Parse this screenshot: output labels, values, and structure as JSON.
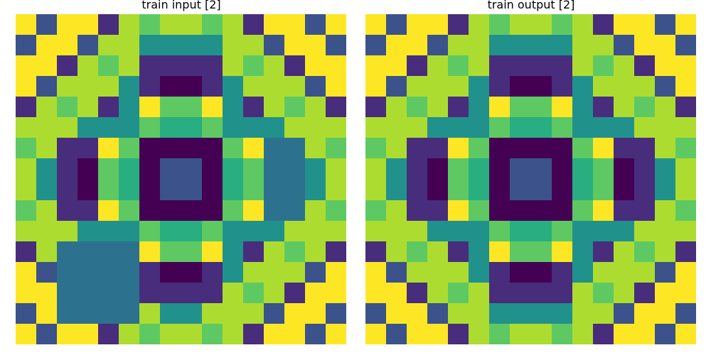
{
  "panels": [
    {
      "title": "train input [2]",
      "grid": [
        [
          9,
          2,
          9,
          9,
          1,
          8,
          7,
          8,
          8,
          7,
          8,
          1,
          9,
          9,
          2,
          9
        ],
        [
          2,
          9,
          9,
          2,
          8,
          8,
          4,
          4,
          4,
          4,
          8,
          8,
          2,
          9,
          9,
          2
        ],
        [
          9,
          9,
          1,
          8,
          7,
          8,
          1,
          1,
          1,
          1,
          8,
          7,
          8,
          1,
          9,
          9
        ],
        [
          9,
          2,
          8,
          8,
          8,
          4,
          1,
          0,
          0,
          1,
          4,
          8,
          8,
          8,
          2,
          9
        ],
        [
          1,
          8,
          7,
          8,
          1,
          4,
          9,
          7,
          7,
          9,
          4,
          1,
          8,
          7,
          8,
          1
        ],
        [
          8,
          8,
          8,
          4,
          4,
          4,
          7,
          5,
          5,
          7,
          4,
          4,
          4,
          8,
          8,
          8
        ],
        [
          7,
          8,
          1,
          1,
          9,
          7,
          0,
          0,
          0,
          0,
          7,
          9,
          3,
          3,
          8,
          7
        ],
        [
          8,
          4,
          1,
          0,
          7,
          5,
          0,
          2,
          2,
          0,
          5,
          7,
          3,
          3,
          4,
          8
        ],
        [
          8,
          4,
          1,
          0,
          7,
          5,
          0,
          2,
          2,
          0,
          5,
          7,
          3,
          3,
          4,
          8
        ],
        [
          7,
          8,
          1,
          1,
          9,
          7,
          0,
          0,
          0,
          0,
          7,
          9,
          3,
          3,
          8,
          7
        ],
        [
          8,
          8,
          8,
          4,
          4,
          4,
          7,
          5,
          5,
          7,
          4,
          4,
          4,
          8,
          8,
          8
        ],
        [
          1,
          8,
          3,
          3,
          3,
          3,
          9,
          7,
          7,
          9,
          4,
          1,
          8,
          7,
          8,
          1
        ],
        [
          9,
          2,
          3,
          3,
          3,
          3,
          1,
          0,
          0,
          1,
          4,
          8,
          8,
          8,
          2,
          9
        ],
        [
          9,
          9,
          3,
          3,
          3,
          3,
          1,
          1,
          1,
          1,
          8,
          7,
          8,
          1,
          9,
          9
        ],
        [
          2,
          9,
          3,
          3,
          3,
          3,
          8,
          4,
          4,
          8,
          8,
          8,
          2,
          9,
          9,
          2
        ],
        [
          9,
          2,
          9,
          9,
          1,
          8,
          7,
          8,
          8,
          7,
          8,
          1,
          9,
          9,
          2,
          9
        ]
      ]
    },
    {
      "title": "train output [2]",
      "grid": [
        [
          9,
          2,
          9,
          9,
          1,
          8,
          7,
          8,
          8,
          7,
          8,
          1,
          9,
          9,
          2,
          9
        ],
        [
          2,
          9,
          9,
          2,
          8,
          8,
          4,
          4,
          4,
          4,
          8,
          8,
          2,
          9,
          9,
          2
        ],
        [
          9,
          9,
          1,
          8,
          7,
          8,
          1,
          1,
          1,
          1,
          8,
          7,
          8,
          1,
          9,
          9
        ],
        [
          9,
          2,
          8,
          8,
          8,
          4,
          1,
          0,
          0,
          1,
          4,
          8,
          8,
          8,
          2,
          9
        ],
        [
          1,
          8,
          7,
          8,
          1,
          4,
          9,
          7,
          7,
          9,
          4,
          1,
          8,
          7,
          8,
          1
        ],
        [
          8,
          8,
          8,
          4,
          4,
          4,
          7,
          5,
          5,
          7,
          4,
          4,
          4,
          8,
          8,
          8
        ],
        [
          7,
          8,
          1,
          1,
          9,
          7,
          0,
          0,
          0,
          0,
          7,
          9,
          1,
          1,
          8,
          7
        ],
        [
          8,
          4,
          1,
          0,
          7,
          5,
          0,
          2,
          2,
          0,
          5,
          7,
          0,
          1,
          4,
          8
        ],
        [
          8,
          4,
          1,
          0,
          7,
          5,
          0,
          2,
          2,
          0,
          5,
          7,
          0,
          1,
          4,
          8
        ],
        [
          7,
          8,
          1,
          1,
          9,
          7,
          0,
          0,
          0,
          0,
          7,
          9,
          1,
          1,
          8,
          7
        ],
        [
          8,
          8,
          8,
          4,
          4,
          4,
          7,
          5,
          5,
          7,
          4,
          4,
          4,
          8,
          8,
          8
        ],
        [
          1,
          8,
          7,
          8,
          1,
          4,
          9,
          7,
          7,
          9,
          4,
          1,
          8,
          7,
          8,
          1
        ],
        [
          9,
          2,
          8,
          8,
          8,
          4,
          1,
          0,
          0,
          1,
          4,
          8,
          8,
          8,
          2,
          9
        ],
        [
          9,
          9,
          1,
          8,
          7,
          8,
          1,
          1,
          1,
          1,
          8,
          7,
          8,
          1,
          9,
          9
        ],
        [
          2,
          9,
          9,
          2,
          8,
          8,
          4,
          4,
          4,
          4,
          8,
          8,
          2,
          9,
          9,
          2
        ],
        [
          9,
          2,
          9,
          9,
          1,
          8,
          7,
          8,
          8,
          7,
          8,
          1,
          9,
          9,
          2,
          9
        ]
      ]
    }
  ],
  "palette": {
    "0": "#440154",
    "1": "#472d7b",
    "2": "#3b528b",
    "3": "#2c728e",
    "4": "#21918c",
    "5": "#28ae80",
    "7": "#5ec962",
    "8": "#addc30",
    "9": "#fde725"
  }
}
